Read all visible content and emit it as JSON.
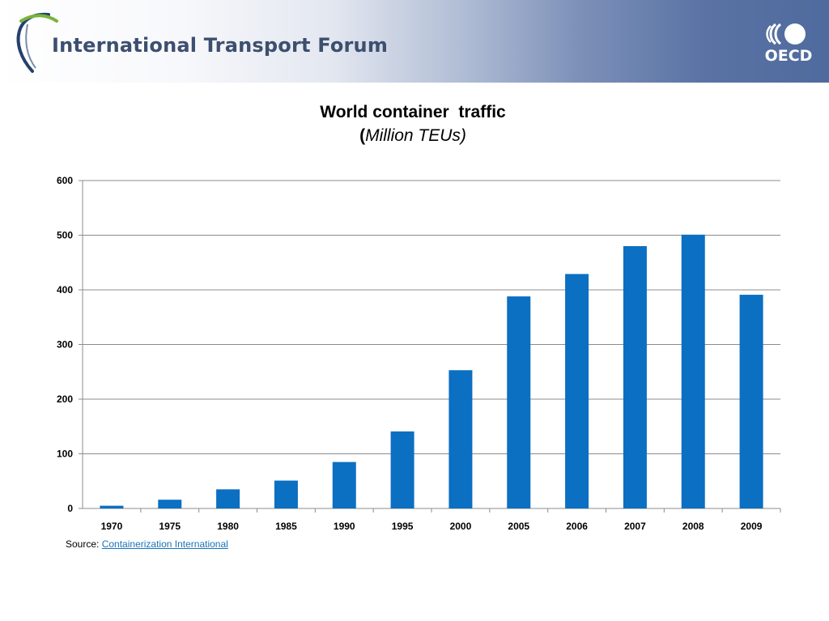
{
  "header": {
    "logo_text": "International Transport Forum",
    "oecd_text": "OECD",
    "colors": {
      "band_dark": "#4f6a9e",
      "logo_text": "#3c4f6e",
      "swoosh_green": "#78b43c",
      "swoosh_blue": "#24406e"
    }
  },
  "chart_data": {
    "type": "bar",
    "title": "World container  traffic",
    "subtitle_open": "(",
    "subtitle_unit": "Million TEUs)",
    "categories": [
      "1970",
      "1975",
      "1980",
      "1985",
      "1990",
      "1995",
      "2000",
      "2005",
      "2006",
      "2007",
      "2008",
      "2009"
    ],
    "values": [
      5,
      16,
      35,
      51,
      85,
      141,
      253,
      388,
      429,
      480,
      501,
      391
    ],
    "ylim": [
      0,
      600
    ],
    "yticks": [
      0,
      100,
      200,
      300,
      400,
      500,
      600
    ],
    "grid": true,
    "bar_color": "#0b6fc2",
    "grid_color": "#8c8c8c"
  },
  "source": {
    "label": "Source: ",
    "link_text": "Containerization International",
    "link_color": "#1a73b8"
  }
}
